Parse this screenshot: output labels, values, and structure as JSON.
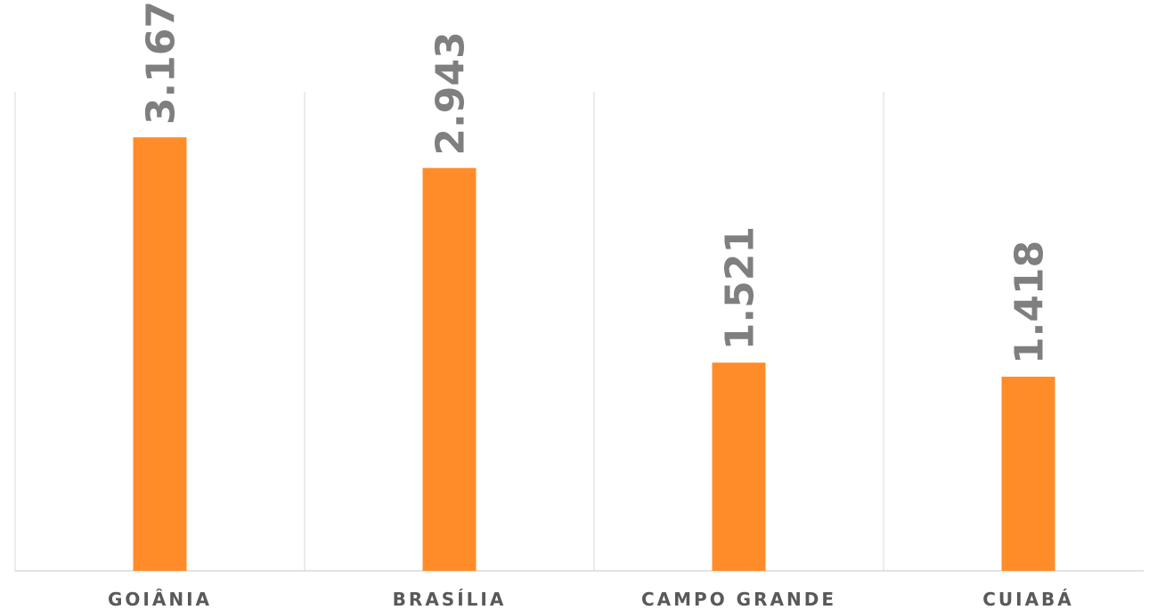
{
  "chart_data": {
    "type": "bar",
    "categories": [
      "GOIÂNIA",
      "BRASÍLIA",
      "CAMPO GRANDE",
      "CUIABÁ"
    ],
    "values": [
      3167,
      2943,
      1521,
      1418
    ],
    "value_labels": [
      "3.167",
      "2.943",
      "1.521",
      "1.418"
    ],
    "color": "#ff8c28",
    "ylim": [
      0,
      3500
    ]
  }
}
